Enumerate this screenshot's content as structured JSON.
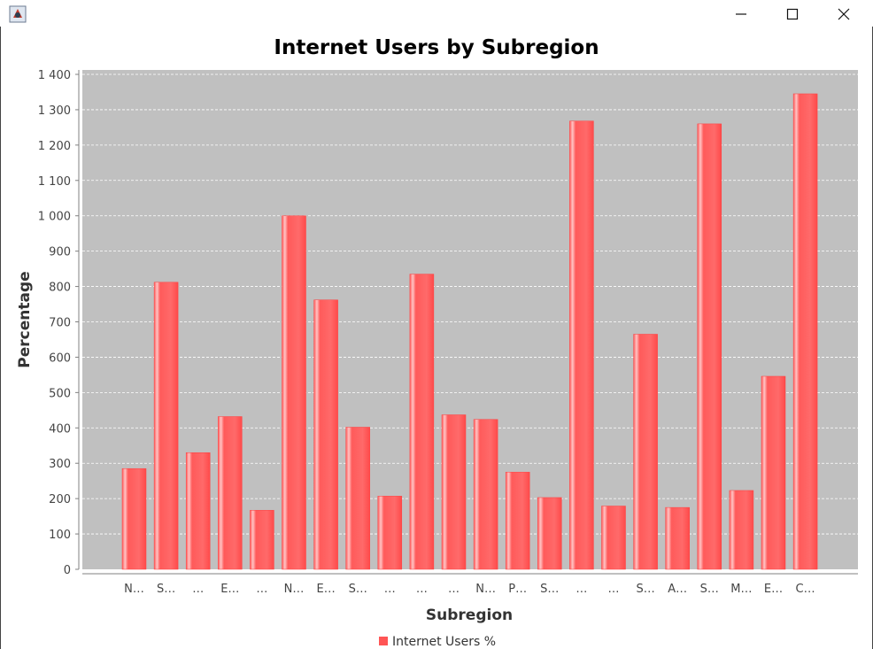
{
  "window": {
    "icon": "java-app-icon",
    "buttons": [
      "minimize-icon",
      "maximize-icon",
      "close-icon"
    ]
  },
  "colors": {
    "plot_background": "#c0c0c0",
    "bar": "#ff5555",
    "bar_highlight": "#ffb0b0",
    "gridline": "#ffffff"
  },
  "chart_data": {
    "type": "bar",
    "title": "Internet Users by Subregion",
    "xlabel": "Subregion",
    "ylabel": "Percentage",
    "ylim": [
      0,
      1400
    ],
    "yticks": [
      "0",
      "100",
      "200",
      "300",
      "400",
      "500",
      "600",
      "700",
      "800",
      "900",
      "1 000",
      "1 100",
      "1 200",
      "1 300",
      "1 400"
    ],
    "grid": true,
    "legend_position": "bottom",
    "categories": [
      "N…",
      "S…",
      "…",
      "E…",
      "…",
      "N…",
      "E…",
      "S…",
      "…",
      "…",
      "…",
      "N…",
      "P…",
      "S…",
      "…",
      "…",
      "S…",
      "A…",
      "S…",
      "M…",
      "E…",
      "C…"
    ],
    "series": [
      {
        "name": "Internet Users %",
        "values": [
          285,
          812,
          330,
          432,
          167,
          1000,
          762,
          402,
          207,
          835,
          437,
          424,
          275,
          203,
          1268,
          179,
          665,
          175,
          1260,
          223,
          546,
          1345
        ]
      }
    ]
  }
}
